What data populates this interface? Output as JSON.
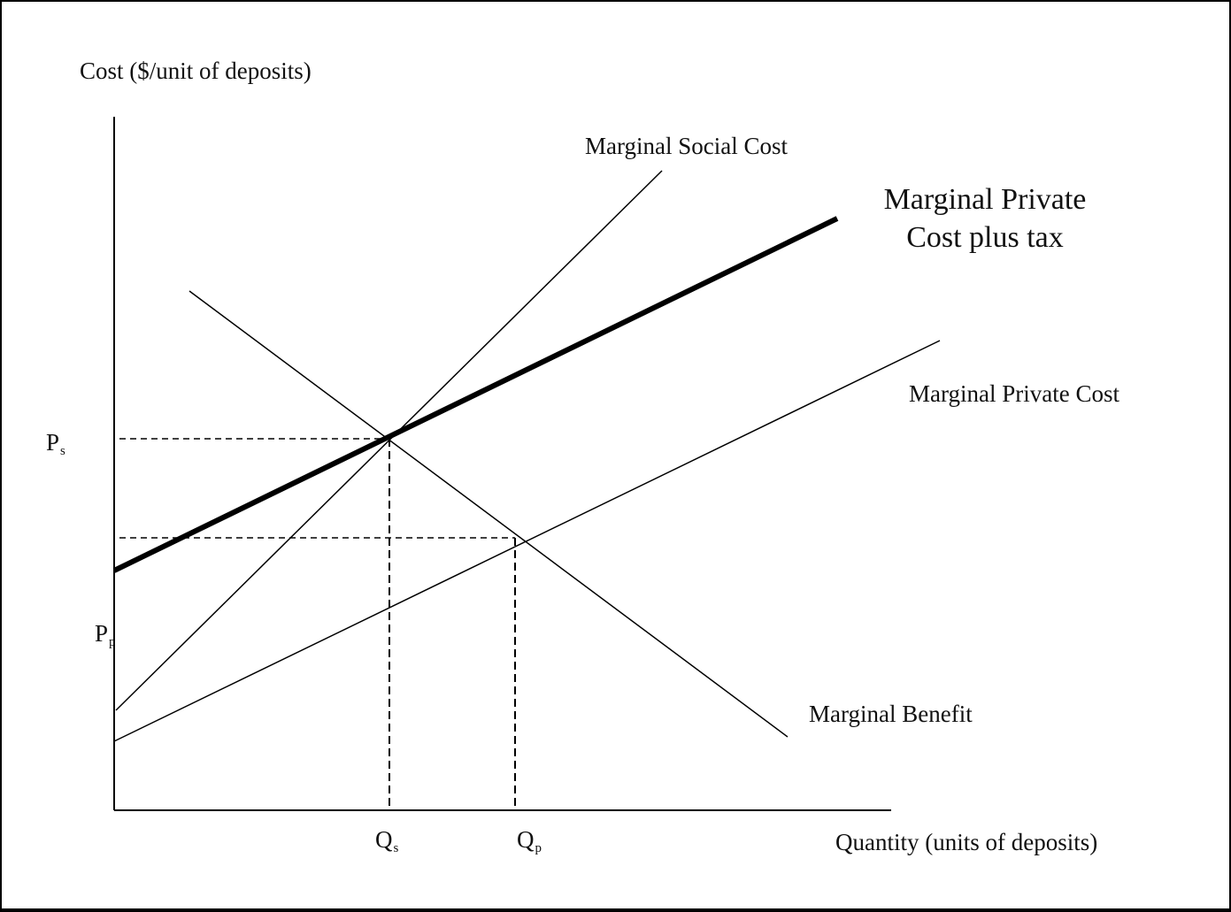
{
  "axes": {
    "y_label": "Cost ($/unit of deposits)",
    "x_label": "Quantity (units of deposits)"
  },
  "curves": {
    "msc": "Marginal Social Cost",
    "mpc_tax_line1": "Marginal Private",
    "mpc_tax_line2": "Cost plus tax",
    "mpc": "Marginal Private Cost",
    "mb": "Marginal Benefit"
  },
  "ticks": {
    "ps_main": "P",
    "ps_sub": "s",
    "pp_main": "P",
    "pp_sub": "p",
    "qs_main": "Q",
    "qs_sub": "s",
    "qp_main": "Q",
    "qp_sub": "p"
  }
}
